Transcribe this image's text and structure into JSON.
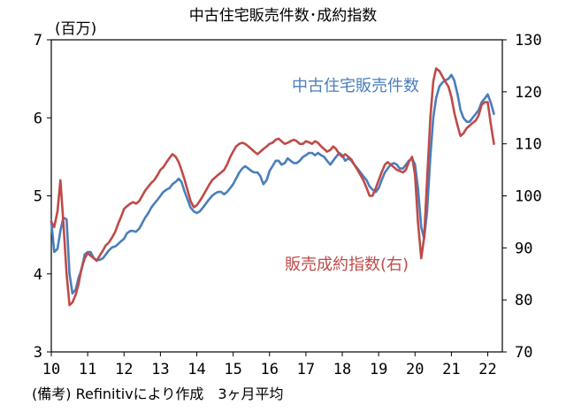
{
  "chart_data": {
    "type": "line",
    "title": "中古住宅販売件数･成約指数",
    "left_unit": "(百万)",
    "note": "(備考) Refinitivにより作成　3ヶ月平均",
    "x_ticks": [
      "10",
      "11",
      "12",
      "13",
      "14",
      "15",
      "16",
      "17",
      "18",
      "19",
      "20",
      "21",
      "22"
    ],
    "y_left_ticks": [
      "3",
      "4",
      "5",
      "6",
      "7"
    ],
    "y_right_ticks": [
      "70",
      "80",
      "90",
      "100",
      "110",
      "120",
      "130"
    ],
    "x_range": [
      2010,
      2022.4
    ],
    "y_left_range": [
      3,
      7
    ],
    "y_right_range": [
      70,
      130
    ],
    "grid": false,
    "series": [
      {
        "name": "中古住宅販売件数",
        "axis": "left",
        "color": "#4a7ebb",
        "points": [
          [
            2010.0,
            4.68
          ],
          [
            2010.08,
            4.28
          ],
          [
            2010.17,
            4.32
          ],
          [
            2010.25,
            4.55
          ],
          [
            2010.33,
            4.72
          ],
          [
            2010.42,
            4.7
          ],
          [
            2010.5,
            4.0
          ],
          [
            2010.58,
            3.75
          ],
          [
            2010.67,
            3.8
          ],
          [
            2010.75,
            3.95
          ],
          [
            2010.83,
            4.05
          ],
          [
            2010.92,
            4.25
          ],
          [
            2011.0,
            4.28
          ],
          [
            2011.08,
            4.28
          ],
          [
            2011.17,
            4.2
          ],
          [
            2011.25,
            4.18
          ],
          [
            2011.33,
            4.18
          ],
          [
            2011.42,
            4.2
          ],
          [
            2011.5,
            4.25
          ],
          [
            2011.58,
            4.3
          ],
          [
            2011.67,
            4.34
          ],
          [
            2011.75,
            4.35
          ],
          [
            2011.83,
            4.38
          ],
          [
            2011.92,
            4.42
          ],
          [
            2012.0,
            4.45
          ],
          [
            2012.08,
            4.52
          ],
          [
            2012.17,
            4.55
          ],
          [
            2012.25,
            4.55
          ],
          [
            2012.33,
            4.54
          ],
          [
            2012.42,
            4.58
          ],
          [
            2012.5,
            4.65
          ],
          [
            2012.58,
            4.72
          ],
          [
            2012.67,
            4.78
          ],
          [
            2012.75,
            4.85
          ],
          [
            2012.83,
            4.9
          ],
          [
            2012.92,
            4.95
          ],
          [
            2013.0,
            5.0
          ],
          [
            2013.08,
            5.05
          ],
          [
            2013.17,
            5.08
          ],
          [
            2013.25,
            5.1
          ],
          [
            2013.33,
            5.15
          ],
          [
            2013.42,
            5.18
          ],
          [
            2013.5,
            5.22
          ],
          [
            2013.58,
            5.18
          ],
          [
            2013.67,
            5.05
          ],
          [
            2013.75,
            4.95
          ],
          [
            2013.83,
            4.85
          ],
          [
            2013.92,
            4.8
          ],
          [
            2014.0,
            4.78
          ],
          [
            2014.08,
            4.8
          ],
          [
            2014.17,
            4.85
          ],
          [
            2014.25,
            4.9
          ],
          [
            2014.33,
            4.95
          ],
          [
            2014.42,
            5.0
          ],
          [
            2014.5,
            5.03
          ],
          [
            2014.58,
            5.05
          ],
          [
            2014.67,
            5.05
          ],
          [
            2014.75,
            5.02
          ],
          [
            2014.83,
            5.05
          ],
          [
            2014.92,
            5.1
          ],
          [
            2015.0,
            5.15
          ],
          [
            2015.08,
            5.22
          ],
          [
            2015.17,
            5.3
          ],
          [
            2015.25,
            5.35
          ],
          [
            2015.33,
            5.38
          ],
          [
            2015.42,
            5.35
          ],
          [
            2015.5,
            5.32
          ],
          [
            2015.58,
            5.3
          ],
          [
            2015.67,
            5.3
          ],
          [
            2015.75,
            5.25
          ],
          [
            2015.83,
            5.15
          ],
          [
            2015.92,
            5.2
          ],
          [
            2016.0,
            5.32
          ],
          [
            2016.08,
            5.38
          ],
          [
            2016.17,
            5.45
          ],
          [
            2016.25,
            5.45
          ],
          [
            2016.33,
            5.4
          ],
          [
            2016.42,
            5.42
          ],
          [
            2016.5,
            5.48
          ],
          [
            2016.58,
            5.45
          ],
          [
            2016.67,
            5.42
          ],
          [
            2016.75,
            5.42
          ],
          [
            2016.83,
            5.45
          ],
          [
            2016.92,
            5.5
          ],
          [
            2017.0,
            5.52
          ],
          [
            2017.08,
            5.55
          ],
          [
            2017.17,
            5.55
          ],
          [
            2017.25,
            5.52
          ],
          [
            2017.33,
            5.55
          ],
          [
            2017.42,
            5.52
          ],
          [
            2017.5,
            5.5
          ],
          [
            2017.58,
            5.45
          ],
          [
            2017.67,
            5.4
          ],
          [
            2017.75,
            5.45
          ],
          [
            2017.83,
            5.5
          ],
          [
            2017.92,
            5.55
          ],
          [
            2018.0,
            5.52
          ],
          [
            2018.08,
            5.45
          ],
          [
            2018.17,
            5.48
          ],
          [
            2018.25,
            5.45
          ],
          [
            2018.33,
            5.4
          ],
          [
            2018.42,
            5.35
          ],
          [
            2018.5,
            5.3
          ],
          [
            2018.58,
            5.25
          ],
          [
            2018.67,
            5.2
          ],
          [
            2018.75,
            5.12
          ],
          [
            2018.83,
            5.08
          ],
          [
            2018.92,
            5.05
          ],
          [
            2019.0,
            5.1
          ],
          [
            2019.08,
            5.2
          ],
          [
            2019.17,
            5.3
          ],
          [
            2019.25,
            5.35
          ],
          [
            2019.33,
            5.4
          ],
          [
            2019.42,
            5.42
          ],
          [
            2019.5,
            5.4
          ],
          [
            2019.58,
            5.35
          ],
          [
            2019.67,
            5.35
          ],
          [
            2019.75,
            5.4
          ],
          [
            2019.83,
            5.45
          ],
          [
            2019.92,
            5.48
          ],
          [
            2020.0,
            5.4
          ],
          [
            2020.08,
            5.1
          ],
          [
            2020.17,
            4.6
          ],
          [
            2020.25,
            4.45
          ],
          [
            2020.33,
            4.8
          ],
          [
            2020.42,
            5.5
          ],
          [
            2020.5,
            6.0
          ],
          [
            2020.58,
            6.25
          ],
          [
            2020.67,
            6.4
          ],
          [
            2020.75,
            6.45
          ],
          [
            2020.83,
            6.48
          ],
          [
            2020.92,
            6.5
          ],
          [
            2021.0,
            6.55
          ],
          [
            2021.08,
            6.48
          ],
          [
            2021.17,
            6.3
          ],
          [
            2021.25,
            6.1
          ],
          [
            2021.33,
            6.0
          ],
          [
            2021.42,
            5.95
          ],
          [
            2021.5,
            5.95
          ],
          [
            2021.58,
            6.0
          ],
          [
            2021.67,
            6.05
          ],
          [
            2021.75,
            6.1
          ],
          [
            2021.83,
            6.2
          ],
          [
            2021.92,
            6.25
          ],
          [
            2022.0,
            6.3
          ],
          [
            2022.08,
            6.2
          ],
          [
            2022.17,
            6.05
          ]
        ]
      },
      {
        "name": "販売成約指数(右)",
        "axis": "right",
        "color": "#be4b48",
        "points": [
          [
            2010.0,
            95.0
          ],
          [
            2010.08,
            94.0
          ],
          [
            2010.17,
            97.0
          ],
          [
            2010.25,
            103.0
          ],
          [
            2010.33,
            95.0
          ],
          [
            2010.42,
            85.0
          ],
          [
            2010.5,
            79.0
          ],
          [
            2010.58,
            79.5
          ],
          [
            2010.67,
            81.0
          ],
          [
            2010.75,
            83.0
          ],
          [
            2010.83,
            86.0
          ],
          [
            2010.92,
            88.0
          ],
          [
            2011.0,
            89.0
          ],
          [
            2011.08,
            88.5
          ],
          [
            2011.17,
            88.0
          ],
          [
            2011.25,
            87.5
          ],
          [
            2011.33,
            88.5
          ],
          [
            2011.42,
            89.5
          ],
          [
            2011.5,
            90.5
          ],
          [
            2011.58,
            91.0
          ],
          [
            2011.67,
            92.0
          ],
          [
            2011.75,
            93.0
          ],
          [
            2011.83,
            94.5
          ],
          [
            2011.92,
            96.0
          ],
          [
            2012.0,
            97.5
          ],
          [
            2012.08,
            98.0
          ],
          [
            2012.17,
            98.5
          ],
          [
            2012.25,
            98.8
          ],
          [
            2012.33,
            98.5
          ],
          [
            2012.42,
            99.0
          ],
          [
            2012.5,
            100.0
          ],
          [
            2012.58,
            101.0
          ],
          [
            2012.67,
            101.8
          ],
          [
            2012.75,
            102.5
          ],
          [
            2012.83,
            103.0
          ],
          [
            2012.92,
            104.0
          ],
          [
            2013.0,
            105.0
          ],
          [
            2013.08,
            105.5
          ],
          [
            2013.17,
            106.5
          ],
          [
            2013.25,
            107.3
          ],
          [
            2013.33,
            108.0
          ],
          [
            2013.42,
            107.5
          ],
          [
            2013.5,
            106.5
          ],
          [
            2013.58,
            105.0
          ],
          [
            2013.67,
            103.0
          ],
          [
            2013.75,
            101.0
          ],
          [
            2013.83,
            99.0
          ],
          [
            2013.92,
            97.8
          ],
          [
            2014.0,
            98.2
          ],
          [
            2014.08,
            99.0
          ],
          [
            2014.17,
            100.0
          ],
          [
            2014.25,
            101.0
          ],
          [
            2014.33,
            102.0
          ],
          [
            2014.42,
            103.0
          ],
          [
            2014.5,
            103.5
          ],
          [
            2014.58,
            104.0
          ],
          [
            2014.67,
            104.5
          ],
          [
            2014.75,
            105.0
          ],
          [
            2014.83,
            106.0
          ],
          [
            2014.92,
            107.5
          ],
          [
            2015.0,
            108.5
          ],
          [
            2015.08,
            109.5
          ],
          [
            2015.17,
            110.0
          ],
          [
            2015.25,
            110.2
          ],
          [
            2015.33,
            110.0
          ],
          [
            2015.42,
            109.5
          ],
          [
            2015.5,
            109.0
          ],
          [
            2015.58,
            108.5
          ],
          [
            2015.67,
            108.0
          ],
          [
            2015.75,
            108.5
          ],
          [
            2015.83,
            109.0
          ],
          [
            2015.92,
            109.5
          ],
          [
            2016.0,
            110.0
          ],
          [
            2016.08,
            110.2
          ],
          [
            2016.17,
            110.8
          ],
          [
            2016.25,
            111.0
          ],
          [
            2016.33,
            110.5
          ],
          [
            2016.42,
            110.0
          ],
          [
            2016.5,
            110.2
          ],
          [
            2016.58,
            110.5
          ],
          [
            2016.67,
            110.8
          ],
          [
            2016.75,
            110.5
          ],
          [
            2016.83,
            110.0
          ],
          [
            2016.92,
            110.0
          ],
          [
            2017.0,
            110.5
          ],
          [
            2017.08,
            110.3
          ],
          [
            2017.17,
            110.0
          ],
          [
            2017.25,
            110.5
          ],
          [
            2017.33,
            110.2
          ],
          [
            2017.42,
            109.5
          ],
          [
            2017.5,
            109.0
          ],
          [
            2017.58,
            108.5
          ],
          [
            2017.67,
            108.8
          ],
          [
            2017.75,
            109.5
          ],
          [
            2017.83,
            109.0
          ],
          [
            2017.92,
            108.0
          ],
          [
            2018.0,
            107.5
          ],
          [
            2018.08,
            108.0
          ],
          [
            2018.17,
            107.5
          ],
          [
            2018.25,
            107.0
          ],
          [
            2018.33,
            106.0
          ],
          [
            2018.42,
            105.0
          ],
          [
            2018.5,
            104.0
          ],
          [
            2018.58,
            103.0
          ],
          [
            2018.67,
            101.5
          ],
          [
            2018.75,
            100.0
          ],
          [
            2018.83,
            100.0
          ],
          [
            2018.92,
            101.5
          ],
          [
            2019.0,
            103.0
          ],
          [
            2019.08,
            104.5
          ],
          [
            2019.17,
            106.0
          ],
          [
            2019.25,
            106.5
          ],
          [
            2019.33,
            106.0
          ],
          [
            2019.42,
            105.5
          ],
          [
            2019.5,
            105.0
          ],
          [
            2019.58,
            104.8
          ],
          [
            2019.67,
            104.5
          ],
          [
            2019.75,
            105.0
          ],
          [
            2019.83,
            106.5
          ],
          [
            2019.92,
            107.5
          ],
          [
            2020.0,
            104.0
          ],
          [
            2020.08,
            95.0
          ],
          [
            2020.17,
            88.0
          ],
          [
            2020.25,
            92.0
          ],
          [
            2020.33,
            103.0
          ],
          [
            2020.42,
            115.0
          ],
          [
            2020.5,
            122.0
          ],
          [
            2020.58,
            124.5
          ],
          [
            2020.67,
            124.0
          ],
          [
            2020.75,
            123.0
          ],
          [
            2020.83,
            122.0
          ],
          [
            2020.92,
            121.0
          ],
          [
            2021.0,
            119.0
          ],
          [
            2021.08,
            116.0
          ],
          [
            2021.17,
            113.5
          ],
          [
            2021.25,
            111.5
          ],
          [
            2021.33,
            112.0
          ],
          [
            2021.42,
            113.0
          ],
          [
            2021.5,
            113.5
          ],
          [
            2021.58,
            114.0
          ],
          [
            2021.67,
            114.5
          ],
          [
            2021.75,
            115.5
          ],
          [
            2021.83,
            117.5
          ],
          [
            2021.92,
            118.0
          ],
          [
            2022.0,
            118.0
          ],
          [
            2022.08,
            114.0
          ],
          [
            2022.17,
            110.0
          ]
        ]
      }
    ]
  }
}
